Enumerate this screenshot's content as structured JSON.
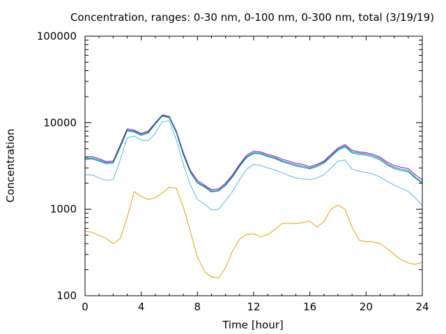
{
  "chart_data": {
    "type": "line",
    "title": "Concentration, ranges: 0-30 nm, 0-100 nm, 0-300 nm, total (3/19/19)",
    "xlabel": "Time [hour]",
    "ylabel": "Concentration",
    "xlim": [
      0,
      24
    ],
    "ylim": [
      100,
      100000
    ],
    "yscale": "log",
    "grid": false,
    "x_ticks": [
      0,
      4,
      8,
      12,
      16,
      20,
      24
    ],
    "x_tick_labels": [
      "0",
      "4",
      "8",
      "12",
      "16",
      "20",
      "24"
    ],
    "y_ticks": [
      100,
      1000,
      10000,
      100000
    ],
    "y_tick_labels": [
      "100",
      "1000",
      "10000",
      "100000"
    ],
    "series": [
      {
        "color": "#9400d3",
        "x": [
          0,
          0.5,
          1,
          1.5,
          2,
          2.5,
          3,
          3.5,
          4,
          4.5,
          5,
          5.5,
          6,
          6.5,
          7,
          7.5,
          8,
          8.5,
          9,
          9.5,
          10,
          10.5,
          11,
          11.5,
          12,
          12.5,
          13,
          13.5,
          14,
          14.5,
          15,
          15.5,
          16,
          16.5,
          17,
          17.5,
          18,
          18.5,
          19,
          19.5,
          20,
          20.5,
          21,
          21.5,
          22,
          22.5,
          23,
          23.5,
          24
        ],
        "values": [
          4000,
          4050,
          3850,
          3550,
          3600,
          5500,
          8500,
          8200,
          7500,
          8000,
          10000,
          12300,
          11800,
          8000,
          4500,
          2800,
          2150,
          1900,
          1680,
          1720,
          2000,
          2500,
          3300,
          4200,
          4700,
          4600,
          4300,
          4100,
          3800,
          3600,
          3400,
          3300,
          3100,
          3300,
          3600,
          4300,
          5100,
          5600,
          4800,
          4600,
          4500,
          4300,
          4000,
          3500,
          3200,
          3050,
          2950,
          2500,
          2200
        ]
      },
      {
        "color": "#0072b2",
        "x": [
          0,
          0.5,
          1,
          1.5,
          2,
          2.5,
          3,
          3.5,
          4,
          4.5,
          5,
          5.5,
          6,
          6.5,
          7,
          7.5,
          8,
          8.5,
          9,
          9.5,
          10,
          10.5,
          11,
          11.5,
          12,
          12.5,
          13,
          13.5,
          14,
          14.5,
          15,
          15.5,
          16,
          16.5,
          17,
          17.5,
          18,
          18.5,
          19,
          19.5,
          20,
          20.5,
          21,
          21.5,
          22,
          22.5,
          23,
          23.5,
          24
        ],
        "values": [
          3850,
          3900,
          3700,
          3450,
          3500,
          5300,
          8200,
          8000,
          7300,
          7800,
          9800,
          12100,
          11600,
          7800,
          4300,
          2700,
          2050,
          1850,
          1620,
          1660,
          1930,
          2420,
          3200,
          4050,
          4500,
          4450,
          4150,
          3950,
          3650,
          3450,
          3250,
          3150,
          3000,
          3200,
          3500,
          4150,
          4950,
          5400,
          4600,
          4450,
          4350,
          4150,
          3850,
          3350,
          3050,
          2900,
          2800,
          2350,
          2050
        ]
      },
      {
        "color": "#009e73",
        "x": [
          0,
          0.5,
          1,
          1.5,
          2,
          2.5,
          3,
          3.5,
          4,
          4.5,
          5,
          5.5,
          6,
          6.5,
          7,
          7.5,
          8,
          8.5,
          9,
          9.5,
          10,
          10.5,
          11,
          11.5,
          12,
          12.5,
          13,
          13.5,
          14,
          14.5,
          15,
          15.5,
          16,
          16.5,
          17,
          17.5,
          18,
          18.5,
          19,
          19.5,
          20,
          20.5,
          21,
          21.5,
          22,
          22.5,
          23,
          23.5,
          24
        ],
        "values": [
          3750,
          3800,
          3600,
          3350,
          3400,
          5150,
          8000,
          7800,
          7100,
          7600,
          9600,
          11900,
          11400,
          7600,
          4200,
          2650,
          2000,
          1800,
          1580,
          1620,
          1880,
          2360,
          3120,
          3950,
          4400,
          4350,
          4050,
          3850,
          3550,
          3350,
          3150,
          3050,
          2920,
          3100,
          3400,
          4050,
          4800,
          5250,
          4450,
          4300,
          4200,
          4000,
          3700,
          3250,
          2950,
          2800,
          2700,
          2280,
          1980
        ]
      },
      {
        "color": "#56b4e9",
        "x": [
          0,
          0.5,
          1,
          1.5,
          2,
          2.5,
          3,
          3.5,
          4,
          4.5,
          5,
          5.5,
          6,
          6.5,
          7,
          7.5,
          8,
          8.5,
          9,
          9.5,
          10,
          10.5,
          11,
          11.5,
          12,
          12.5,
          13,
          13.5,
          14,
          14.5,
          15,
          15.5,
          16,
          16.5,
          17,
          17.5,
          18,
          18.5,
          19,
          19.5,
          20,
          20.5,
          21,
          21.5,
          22,
          22.5,
          23,
          23.5,
          24
        ],
        "values": [
          2500,
          2500,
          2300,
          2150,
          2200,
          3700,
          6700,
          7000,
          6300,
          6200,
          7500,
          10300,
          10500,
          6300,
          3300,
          1900,
          1300,
          1150,
          980,
          1000,
          1250,
          1600,
          2200,
          2900,
          3300,
          3200,
          3000,
          2850,
          2650,
          2450,
          2300,
          2250,
          2200,
          2300,
          2500,
          3000,
          3600,
          3700,
          2900,
          2750,
          2650,
          2550,
          2350,
          2100,
          1900,
          1750,
          1600,
          1350,
          1100
        ]
      },
      {
        "color": "#e69f00",
        "x": [
          0,
          0.5,
          1,
          1.5,
          2,
          2.5,
          3,
          3.5,
          4,
          4.5,
          5,
          5.5,
          6,
          6.5,
          7,
          7.5,
          8,
          8.5,
          9,
          9.5,
          10,
          10.5,
          11,
          11.5,
          12,
          12.5,
          13,
          13.5,
          14,
          14.5,
          15,
          15.5,
          16,
          16.5,
          17,
          17.5,
          18,
          18.5,
          19,
          19.5,
          20,
          20.5,
          21,
          21.5,
          22,
          22.5,
          23,
          23.5,
          24
        ],
        "values": [
          560,
          540,
          500,
          460,
          400,
          460,
          800,
          1600,
          1400,
          1300,
          1350,
          1550,
          1800,
          1750,
          1050,
          550,
          280,
          190,
          165,
          160,
          210,
          330,
          450,
          510,
          520,
          480,
          510,
          580,
          680,
          690,
          680,
          700,
          730,
          620,
          720,
          1000,
          1120,
          1000,
          620,
          440,
          420,
          420,
          400,
          350,
          300,
          260,
          240,
          230,
          245
        ]
      }
    ]
  }
}
